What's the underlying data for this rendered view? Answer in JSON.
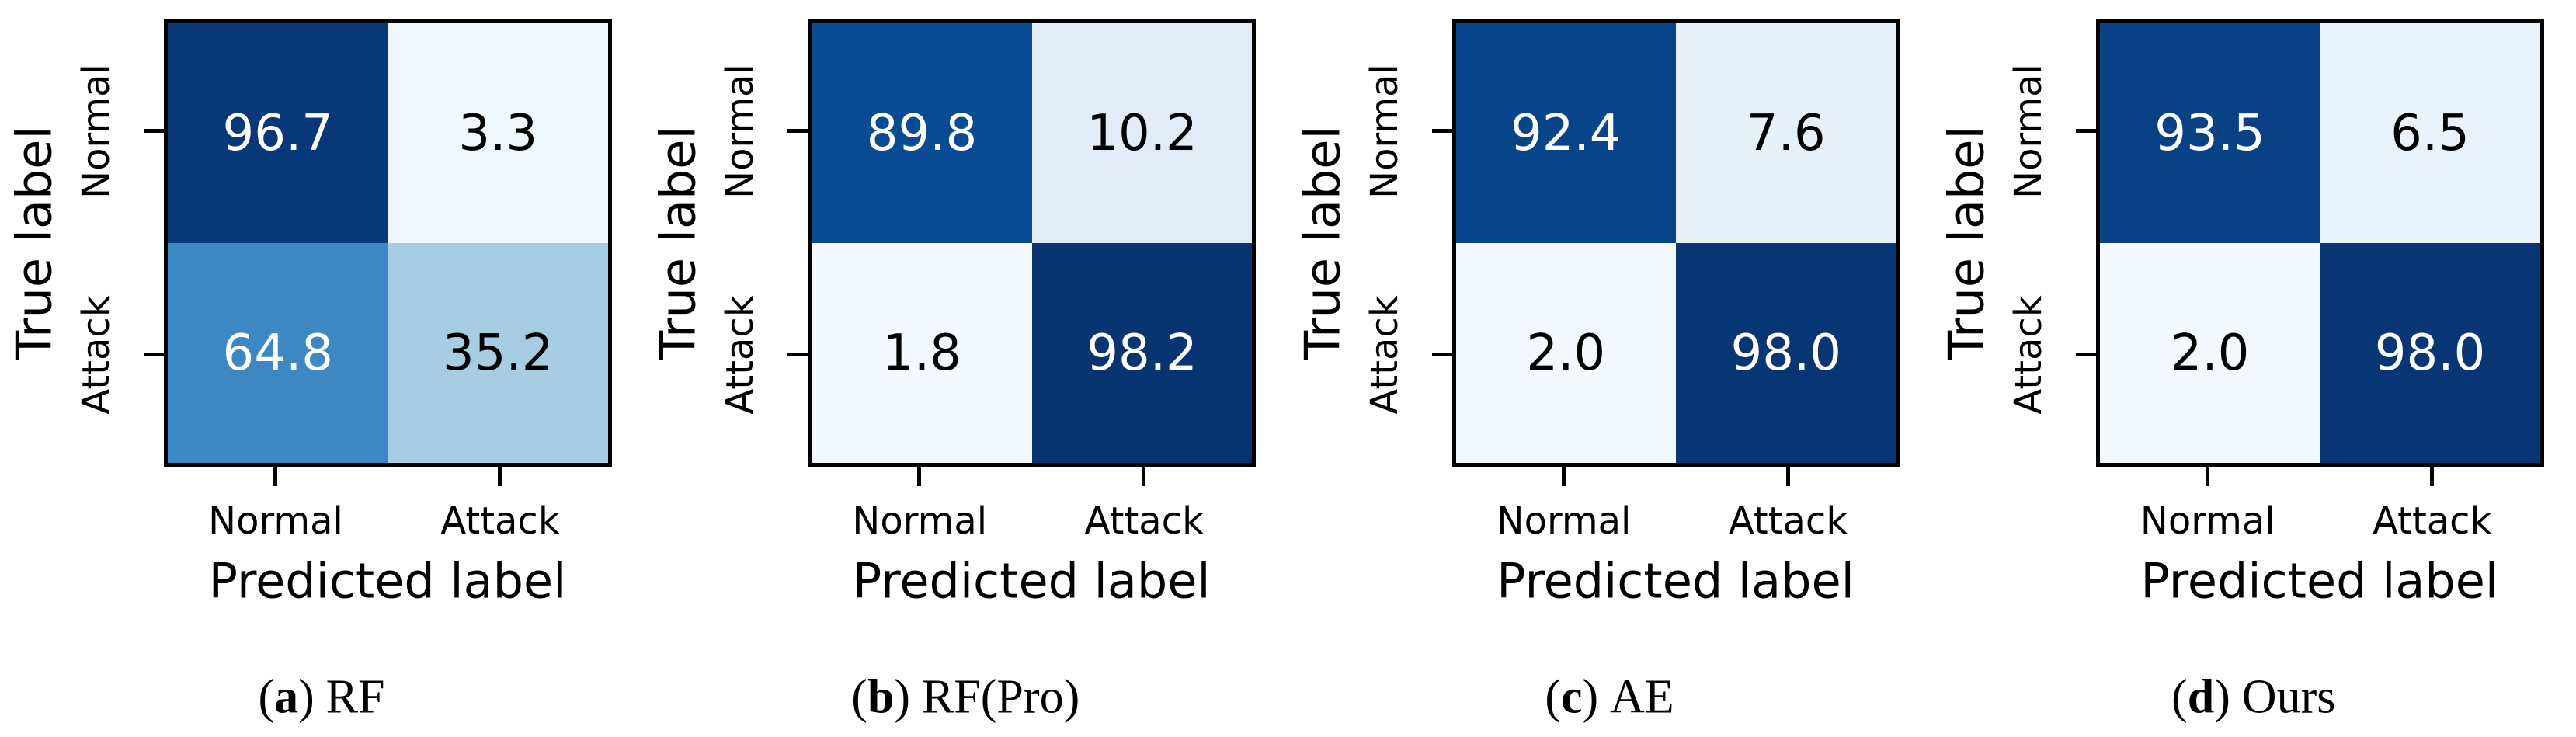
{
  "figure": {
    "ylabel": "True label",
    "xlabel": "Predicted label",
    "row_tick_labels": [
      "Normal",
      "Attack"
    ],
    "col_tick_labels": [
      "Normal",
      "Attack"
    ],
    "panels": [
      {
        "caption": {
          "open": "(",
          "letter": "a",
          "close": ")",
          "name": "RF"
        },
        "cells": [
          [
            {
              "value": "96.7",
              "bg": "#083877",
              "fg": "#ffffff"
            },
            {
              "value": "3.3",
              "bg": "#f0f7fd",
              "fg": "#000000"
            }
          ],
          [
            {
              "value": "64.8",
              "bg": "#3d88c2",
              "fg": "#ffffff"
            },
            {
              "value": "35.2",
              "bg": "#a7cde2",
              "fg": "#000000"
            }
          ]
        ]
      },
      {
        "caption": {
          "open": "(",
          "letter": "b",
          "close": ")",
          "name": "RF(Pro)"
        },
        "cells": [
          [
            {
              "value": "89.8",
              "bg": "#084b93",
              "fg": "#ffffff"
            },
            {
              "value": "10.2",
              "bg": "#e2ecf7",
              "fg": "#000000"
            }
          ],
          [
            {
              "value": "1.8",
              "bg": "#f3f9fe",
              "fg": "#000000"
            },
            {
              "value": "98.2",
              "bg": "#083572",
              "fg": "#ffffff"
            }
          ]
        ]
      },
      {
        "caption": {
          "open": "(",
          "letter": "c",
          "close": ")",
          "name": "AE"
        },
        "cells": [
          [
            {
              "value": "92.4",
              "bg": "#084489",
              "fg": "#ffffff"
            },
            {
              "value": "7.6",
              "bg": "#e7f1fa",
              "fg": "#000000"
            }
          ],
          [
            {
              "value": "2.0",
              "bg": "#f3f9fe",
              "fg": "#000000"
            },
            {
              "value": "98.0",
              "bg": "#083573",
              "fg": "#ffffff"
            }
          ]
        ]
      },
      {
        "caption": {
          "open": "(",
          "letter": "d",
          "close": ")",
          "name": "Ours"
        },
        "cells": [
          [
            {
              "value": "93.5",
              "bg": "#084184",
              "fg": "#ffffff"
            },
            {
              "value": "6.5",
              "bg": "#eaf3fb",
              "fg": "#000000"
            }
          ],
          [
            {
              "value": "2.0",
              "bg": "#f3f9fe",
              "fg": "#000000"
            },
            {
              "value": "98.0",
              "bg": "#083573",
              "fg": "#ffffff"
            }
          ]
        ]
      }
    ]
  },
  "chart_data": [
    {
      "type": "heatmap",
      "title": "(a) RF",
      "xlabel": "Predicted label",
      "ylabel": "True label",
      "x_categories": [
        "Normal",
        "Attack"
      ],
      "y_categories": [
        "Normal",
        "Attack"
      ],
      "values": [
        [
          96.7,
          3.3
        ],
        [
          64.8,
          35.2
        ]
      ],
      "colormap": "Blues",
      "value_range": [
        0,
        100
      ],
      "annotations": true
    },
    {
      "type": "heatmap",
      "title": "(b) RF(Pro)",
      "xlabel": "Predicted label",
      "ylabel": "True label",
      "x_categories": [
        "Normal",
        "Attack"
      ],
      "y_categories": [
        "Normal",
        "Attack"
      ],
      "values": [
        [
          89.8,
          10.2
        ],
        [
          1.8,
          98.2
        ]
      ],
      "colormap": "Blues",
      "value_range": [
        0,
        100
      ],
      "annotations": true
    },
    {
      "type": "heatmap",
      "title": "(c) AE",
      "xlabel": "Predicted label",
      "ylabel": "True label",
      "x_categories": [
        "Normal",
        "Attack"
      ],
      "y_categories": [
        "Normal",
        "Attack"
      ],
      "values": [
        [
          92.4,
          7.6
        ],
        [
          2.0,
          98.0
        ]
      ],
      "colormap": "Blues",
      "value_range": [
        0,
        100
      ],
      "annotations": true
    },
    {
      "type": "heatmap",
      "title": "(d) Ours",
      "xlabel": "Predicted label",
      "ylabel": "True label",
      "x_categories": [
        "Normal",
        "Attack"
      ],
      "y_categories": [
        "Normal",
        "Attack"
      ],
      "values": [
        [
          93.5,
          6.5
        ],
        [
          2.0,
          98.0
        ]
      ],
      "colormap": "Blues",
      "value_range": [
        0,
        100
      ],
      "annotations": true
    }
  ]
}
